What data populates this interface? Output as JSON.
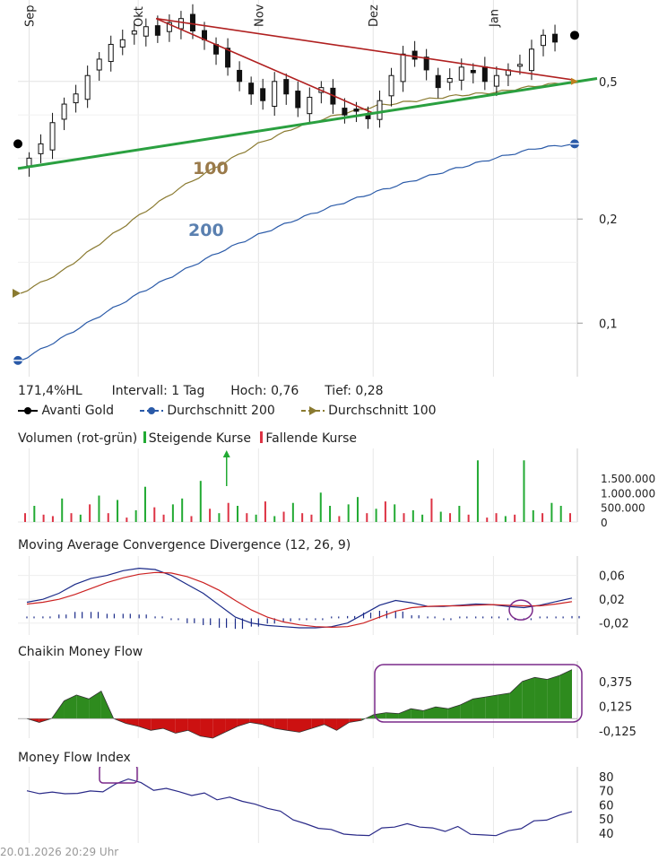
{
  "header": {
    "range_pct": "171,4%HL",
    "interval_label": "Intervall: 1 Tag",
    "high_label": "Hoch:",
    "high_value": "0,76",
    "low_label": "Tief:",
    "low_value": "0,28"
  },
  "legend": {
    "series": [
      {
        "name": "Avanti Gold",
        "color": "#000000"
      },
      {
        "name": "Durchschnitt 200",
        "color": "#2a5aa8"
      },
      {
        "name": "Durchschnitt 100",
        "color": "#8a7a30"
      }
    ]
  },
  "timestamp": "20.01.2026 20:29 Uhr",
  "chart_data": [
    {
      "type": "candlestick",
      "title": "",
      "x_labels": [
        "Sep",
        "Okt",
        "Nov",
        "Dez",
        "Jan"
      ],
      "y_scale": "log",
      "y_ticks": [
        "0,5",
        "0,2",
        "0,1"
      ],
      "y_tick_values": [
        0.5,
        0.2,
        0.1
      ],
      "ylim": [
        0.07,
        0.86
      ],
      "price_range": {
        "high": 0.76,
        "low": 0.28
      },
      "annotations": [
        "100",
        "200"
      ],
      "close_series_approx": [
        0.3,
        0.33,
        0.38,
        0.43,
        0.46,
        0.52,
        0.58,
        0.64,
        0.66,
        0.7,
        0.72,
        0.68,
        0.74,
        0.76,
        0.7,
        0.66,
        0.6,
        0.55,
        0.5,
        0.46,
        0.44,
        0.5,
        0.46,
        0.42,
        0.45,
        0.48,
        0.43,
        0.4,
        0.41,
        0.39,
        0.44,
        0.52,
        0.6,
        0.58,
        0.54,
        0.48,
        0.51,
        0.55,
        0.53,
        0.5,
        0.52,
        0.54,
        0.56,
        0.62,
        0.68,
        0.65
      ],
      "series": [
        {
          "name": "Durchschnitt 100",
          "values": [
            0.122,
            0.14,
            0.17,
            0.205,
            0.245,
            0.285,
            0.33,
            0.37,
            0.4,
            0.425,
            0.44,
            0.455,
            0.465,
            0.485,
            0.5
          ]
        },
        {
          "name": "Durchschnitt 200",
          "values": [
            0.078,
            0.09,
            0.105,
            0.122,
            0.14,
            0.16,
            0.18,
            0.2,
            0.22,
            0.24,
            0.26,
            0.28,
            0.3,
            0.32,
            0.33
          ]
        }
      ],
      "trendlines": [
        {
          "name": "support",
          "color": "#2aa040",
          "from": 0.28,
          "to": 0.5
        },
        {
          "name": "resistance-1",
          "color": "#b02020",
          "from": 0.76,
          "to": 0.5
        },
        {
          "name": "resistance-2",
          "color": "#b02020",
          "from": 0.76,
          "to": 0.4
        }
      ]
    },
    {
      "type": "bar",
      "title": "Volumen (rot-grün)",
      "legend": [
        "Steigende Kurse",
        "Fallende Kurse"
      ],
      "colors": {
        "up": "#22aa33",
        "down": "#dd3344"
      },
      "y_ticks": [
        "1.500.000",
        "1.000.000",
        "500.000",
        "0"
      ],
      "y_tick_values": [
        1500000,
        1000000,
        500000,
        0
      ],
      "values": [
        300000,
        550000,
        250000,
        200000,
        800000,
        300000,
        250000,
        600000,
        900000,
        300000,
        750000,
        150000,
        400000,
        1200000,
        500000,
        250000,
        600000,
        800000,
        200000,
        1400000,
        450000,
        300000,
        650000,
        550000,
        300000,
        250000,
        700000,
        200000,
        350000,
        650000,
        300000,
        250000,
        1000000,
        550000,
        200000,
        600000,
        850000,
        300000,
        450000,
        700000,
        600000,
        300000,
        400000,
        250000,
        800000,
        350000,
        300000,
        550000,
        250000,
        2100000,
        150000,
        300000,
        200000,
        250000,
        2100000,
        400000,
        300000,
        650000,
        550000,
        300000
      ],
      "directions": [
        "d",
        "u",
        "d",
        "d",
        "u",
        "d",
        "u",
        "d",
        "u",
        "d",
        "u",
        "d",
        "u",
        "u",
        "d",
        "d",
        "u",
        "u",
        "d",
        "u",
        "d",
        "u",
        "d",
        "u",
        "d",
        "u",
        "d",
        "u",
        "d",
        "u",
        "d",
        "d",
        "u",
        "u",
        "d",
        "u",
        "u",
        "d",
        "u",
        "d",
        "u",
        "d",
        "u",
        "u",
        "d",
        "u",
        "d",
        "u",
        "d",
        "u",
        "d",
        "d",
        "u",
        "d",
        "u",
        "u",
        "d",
        "u",
        "u",
        "d"
      ]
    },
    {
      "type": "line",
      "title": "Moving Average Convergence Divergence (12, 26, 9)",
      "y_ticks": [
        "0,06",
        "0,02",
        "-0,02"
      ],
      "y_tick_values": [
        0.06,
        0.02,
        -0.02
      ],
      "ylim": [
        -0.04,
        0.085
      ],
      "series": [
        {
          "name": "MACD",
          "color": "#1a2a88",
          "values": [
            0.015,
            0.02,
            0.03,
            0.045,
            0.055,
            0.06,
            0.068,
            0.072,
            0.07,
            0.06,
            0.045,
            0.03,
            0.01,
            -0.01,
            -0.02,
            -0.024,
            -0.026,
            -0.028,
            -0.028,
            -0.026,
            -0.02,
            -0.005,
            0.01,
            0.018,
            0.014,
            0.008,
            0.008,
            0.01,
            0.012,
            0.011,
            0.008,
            0.006,
            0.01,
            0.016,
            0.022
          ]
        },
        {
          "name": "Signal",
          "color": "#cc2222",
          "values": [
            0.012,
            0.015,
            0.02,
            0.028,
            0.038,
            0.048,
            0.056,
            0.062,
            0.065,
            0.064,
            0.058,
            0.048,
            0.035,
            0.018,
            0.002,
            -0.01,
            -0.018,
            -0.023,
            -0.026,
            -0.027,
            -0.026,
            -0.02,
            -0.01,
            0.0,
            0.006,
            0.008,
            0.009,
            0.009,
            0.01,
            0.011,
            0.01,
            0.009,
            0.009,
            0.012,
            0.016
          ]
        }
      ],
      "histogram": [
        0.003,
        0.005,
        0.01,
        0.017,
        0.017,
        0.012,
        0.012,
        0.01,
        0.005,
        -0.004,
        -0.013,
        -0.018,
        -0.025,
        -0.028,
        -0.022,
        -0.014,
        -0.008,
        -0.005,
        -0.002,
        0.001,
        0.006,
        0.015,
        0.02,
        0.018,
        0.008,
        0.0,
        -0.001,
        0.001,
        0.002,
        0.0,
        -0.002,
        -0.003,
        0.001,
        0.004,
        0.006
      ]
    },
    {
      "type": "area",
      "title": "Chaikin Money Flow",
      "colors": {
        "positive": "#2e8b1e",
        "negative": "#cc1111"
      },
      "y_ticks": [
        "0,375",
        "0,125",
        "-0,125"
      ],
      "y_tick_values": [
        0.375,
        0.125,
        -0.125
      ],
      "ylim": [
        -0.2,
        0.56
      ],
      "values": [
        0.0,
        -0.04,
        0.0,
        0.18,
        0.24,
        0.2,
        0.28,
        0.0,
        -0.05,
        -0.08,
        -0.12,
        -0.1,
        -0.15,
        -0.12,
        -0.18,
        -0.2,
        -0.14,
        -0.08,
        -0.04,
        -0.06,
        -0.1,
        -0.12,
        -0.14,
        -0.1,
        -0.06,
        -0.12,
        -0.04,
        -0.02,
        0.04,
        0.06,
        0.05,
        0.1,
        0.08,
        0.12,
        0.1,
        0.14,
        0.2,
        0.22,
        0.24,
        0.26,
        0.38,
        0.42,
        0.4,
        0.44,
        0.5
      ]
    },
    {
      "type": "line",
      "title": "Money Flow Index",
      "color": "#2a2a88",
      "y_ticks": [
        "80",
        "70",
        "60",
        "50",
        "40"
      ],
      "y_tick_values": [
        80,
        70,
        60,
        50,
        40
      ],
      "ylim": [
        33,
        85
      ],
      "values": [
        70,
        68,
        69,
        68,
        68,
        70,
        69,
        75,
        78,
        76,
        70,
        72,
        69,
        67,
        68,
        64,
        65,
        63,
        60,
        58,
        55,
        50,
        46,
        44,
        42,
        40,
        38,
        39,
        43,
        45,
        46,
        45,
        43,
        42,
        44,
        40,
        38,
        39,
        41,
        44,
        48,
        50,
        52,
        56
      ]
    }
  ]
}
